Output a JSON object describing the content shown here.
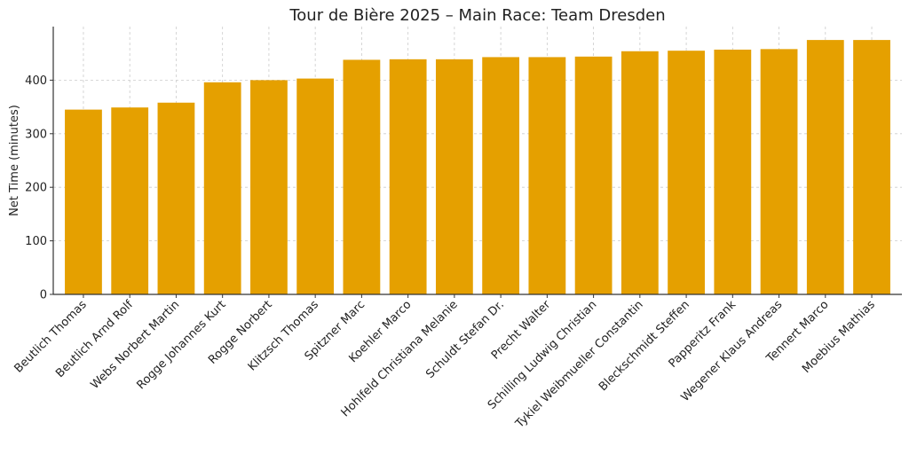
{
  "chart_data": {
    "type": "bar",
    "title": "Tour de Bière 2025 – Main Race: Team Dresden",
    "xlabel": "",
    "ylabel": "Net Time (minutes)",
    "categories": [
      "Beutlich Thomas",
      "Beutlich Arnd Rolf",
      "Webs Norbert Martin",
      "Rogge Johannes Kurt",
      "Rogge Norbert",
      "Klitzsch Thomas",
      "Spitzner Marc",
      "Koehler Marco",
      "Hohlfeld Christiana Melanie",
      "Schuldt Stefan Dr.",
      "Precht Walter",
      "Schilling Ludwig Christian",
      "Tykiel Weibmueller Constantin",
      "Bleckschmidt Steffen",
      "Papperitz Frank",
      "Wegener Klaus Andreas",
      "Tennert Marco",
      "Moebius Mathias"
    ],
    "values": [
      345,
      349,
      358,
      396,
      400,
      403,
      438,
      439,
      439,
      443,
      443,
      444,
      454,
      455,
      457,
      458,
      475,
      475
    ],
    "ylim": [
      0,
      500
    ],
    "yticks": [
      0,
      100,
      200,
      300,
      400
    ],
    "grid": true,
    "bar_color": "#E5A000"
  }
}
